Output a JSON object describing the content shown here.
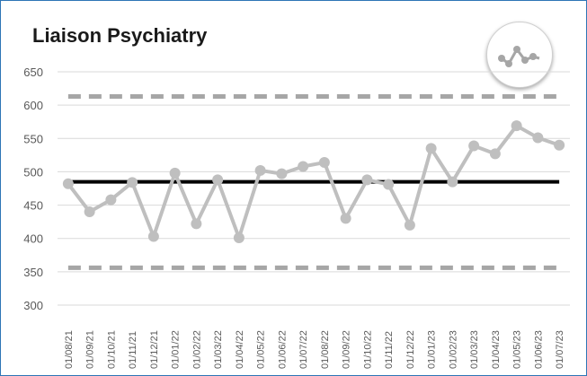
{
  "chart_data": {
    "type": "line",
    "title": "Liaison Psychiatry",
    "icon": "spc-variation-icon",
    "ylim": [
      300,
      650
    ],
    "yticks": [
      300,
      350,
      400,
      450,
      500,
      550,
      600,
      650
    ],
    "grid": true,
    "categories": [
      "01/08/21",
      "01/09/21",
      "01/10/21",
      "01/11/21",
      "01/12/21",
      "01/01/22",
      "01/02/22",
      "01/03/22",
      "01/04/22",
      "01/05/22",
      "01/06/22",
      "01/07/22",
      "01/08/22",
      "01/09/22",
      "01/10/22",
      "01/11/22",
      "01/12/22",
      "01/01/23",
      "01/02/23",
      "01/03/23",
      "01/04/23",
      "01/05/23",
      "01/06/23",
      "01/07/23"
    ],
    "series": [
      {
        "role": "data",
        "color": "#bfbfbf",
        "values": [
          482,
          440,
          458,
          484,
          403,
          498,
          422,
          488,
          401,
          502,
          497,
          508,
          514,
          430,
          488,
          481,
          420,
          535,
          485,
          539,
          527,
          569,
          551,
          540
        ]
      }
    ],
    "mean": {
      "value": 485,
      "color": "#000000"
    },
    "upper_limit": {
      "value": 613,
      "color": "#a6a6a6"
    },
    "lower_limit": {
      "value": 356,
      "color": "#a6a6a6"
    }
  }
}
